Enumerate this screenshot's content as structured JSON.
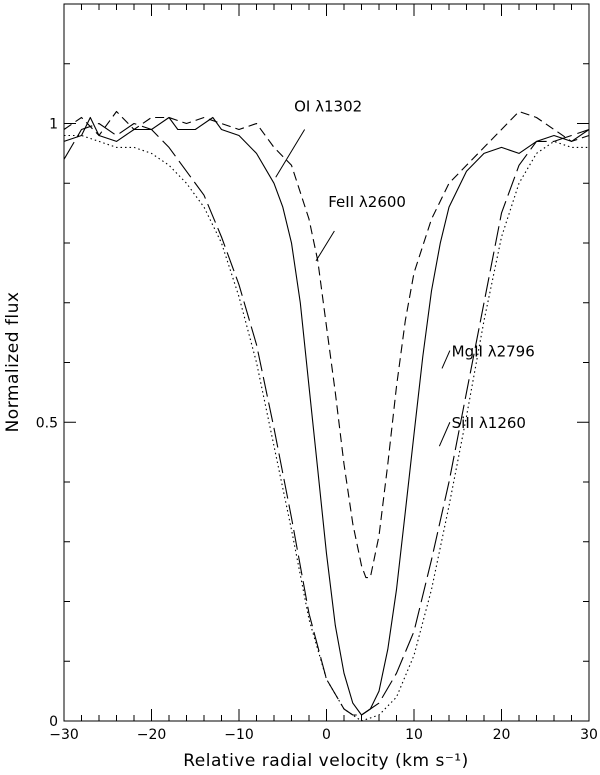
{
  "chart_data": {
    "type": "line",
    "title": "",
    "xlabel": "Relative radial velocity (km s⁻¹)",
    "ylabel": "Normalized flux",
    "xlim": [
      -30,
      30
    ],
    "ylim": [
      0,
      1.2
    ],
    "x_ticks": [
      -30,
      -20,
      -10,
      0,
      10,
      20,
      30
    ],
    "y_ticks": [
      0,
      0.5,
      1
    ],
    "x_tick_labels": [
      "−30",
      "−20",
      "−10",
      "0",
      "10",
      "20",
      "30"
    ],
    "y_tick_labels": [
      "0",
      "0.5",
      "1"
    ],
    "grid": false,
    "legend": "inline labels with leader lines",
    "series": [
      {
        "name": "OI λ1302",
        "style": "solid",
        "label": "OI λ1302",
        "x": [
          -30,
          -28,
          -27,
          -26,
          -24,
          -22,
          -20,
          -18,
          -17,
          -15,
          -13,
          -12,
          -10,
          -8,
          -6,
          -5,
          -4,
          -3,
          -2,
          -1,
          0,
          1,
          2,
          3,
          4,
          5,
          6,
          7,
          8,
          9,
          10,
          11,
          12,
          13,
          14,
          16,
          18,
          20,
          22,
          24,
          26,
          28,
          30
        ],
        "y": [
          0.97,
          0.98,
          1.01,
          0.98,
          0.97,
          0.99,
          0.99,
          1.01,
          0.99,
          0.99,
          1.01,
          0.99,
          0.98,
          0.95,
          0.9,
          0.86,
          0.8,
          0.7,
          0.56,
          0.42,
          0.28,
          0.16,
          0.08,
          0.03,
          0.01,
          0.02,
          0.05,
          0.12,
          0.22,
          0.35,
          0.48,
          0.61,
          0.72,
          0.8,
          0.86,
          0.92,
          0.95,
          0.96,
          0.95,
          0.97,
          0.98,
          0.97,
          0.99
        ]
      },
      {
        "name": "FeII λ2600",
        "style": "dashed",
        "label": "FeII λ2600",
        "x": [
          -30,
          -28,
          -26,
          -24,
          -22,
          -20,
          -18,
          -16,
          -14,
          -12,
          -10,
          -8,
          -6,
          -4,
          -2,
          -1,
          0,
          1,
          2,
          3,
          4,
          4.5,
          5,
          6,
          7,
          8,
          9,
          10,
          12,
          14,
          16,
          18,
          20,
          22,
          24,
          26,
          28,
          30
        ],
        "y": [
          0.99,
          1.01,
          0.98,
          1.02,
          0.99,
          1.01,
          1.01,
          1.0,
          1.01,
          1.0,
          0.99,
          1.0,
          0.96,
          0.93,
          0.84,
          0.77,
          0.66,
          0.55,
          0.43,
          0.33,
          0.26,
          0.24,
          0.24,
          0.31,
          0.43,
          0.56,
          0.67,
          0.75,
          0.84,
          0.9,
          0.93,
          0.96,
          0.99,
          1.02,
          1.01,
          0.99,
          0.97,
          0.98
        ]
      },
      {
        "name": "MgII λ2796",
        "style": "long-dashed",
        "label": "MgII λ2796",
        "x": [
          -30,
          -28,
          -26,
          -24,
          -22,
          -20,
          -18,
          -16,
          -14,
          -12,
          -10,
          -8,
          -6,
          -4,
          -2,
          0,
          2,
          3,
          4,
          5,
          6,
          8,
          10,
          12,
          14,
          16,
          18,
          20,
          22,
          24,
          26,
          28,
          30
        ],
        "y": [
          0.94,
          0.99,
          1.0,
          0.98,
          1.0,
          0.99,
          0.96,
          0.92,
          0.88,
          0.81,
          0.73,
          0.63,
          0.49,
          0.34,
          0.18,
          0.07,
          0.02,
          0.01,
          0.01,
          0.02,
          0.03,
          0.08,
          0.15,
          0.27,
          0.4,
          0.55,
          0.7,
          0.85,
          0.93,
          0.97,
          0.97,
          0.98,
          0.99
        ]
      },
      {
        "name": "SiII λ1260",
        "style": "dotted",
        "label": "SiII λ1260",
        "x": [
          -30,
          -28,
          -26,
          -24,
          -22,
          -20,
          -18,
          -16,
          -14,
          -12,
          -10,
          -8,
          -6,
          -4,
          -2,
          0,
          2,
          4,
          6,
          8,
          10,
          12,
          14,
          16,
          18,
          20,
          22,
          24,
          26,
          28,
          30
        ],
        "y": [
          0.98,
          0.98,
          0.97,
          0.96,
          0.96,
          0.95,
          0.93,
          0.9,
          0.86,
          0.8,
          0.71,
          0.6,
          0.46,
          0.32,
          0.17,
          0.07,
          0.02,
          0.0,
          0.01,
          0.04,
          0.11,
          0.22,
          0.36,
          0.51,
          0.67,
          0.81,
          0.9,
          0.95,
          0.97,
          0.96,
          0.96
        ]
      }
    ],
    "annotations": [
      {
        "series": "OI λ1302",
        "text": "OI λ1302",
        "text_x": -3.7,
        "text_y": 1.02,
        "line_from": [
          -2.5,
          0.99
        ],
        "line_to": [
          -5.8,
          0.91
        ]
      },
      {
        "series": "FeII λ2600",
        "text": "FeII λ2600",
        "text_x": 0.2,
        "text_y": 0.86,
        "line_from": [
          0.9,
          0.82
        ],
        "line_to": [
          -1.2,
          0.77
        ]
      },
      {
        "series": "MgII λ2796",
        "text": "MgII λ2796",
        "text_x": 14.3,
        "text_y": 0.61,
        "line_from": [
          14.1,
          0.62
        ],
        "line_to": [
          13.2,
          0.59
        ]
      },
      {
        "series": "SiII λ1260",
        "text": "SiII λ1260",
        "text_x": 14.3,
        "text_y": 0.49,
        "line_from": [
          14.1,
          0.5
        ],
        "line_to": [
          12.9,
          0.46
        ]
      }
    ]
  }
}
